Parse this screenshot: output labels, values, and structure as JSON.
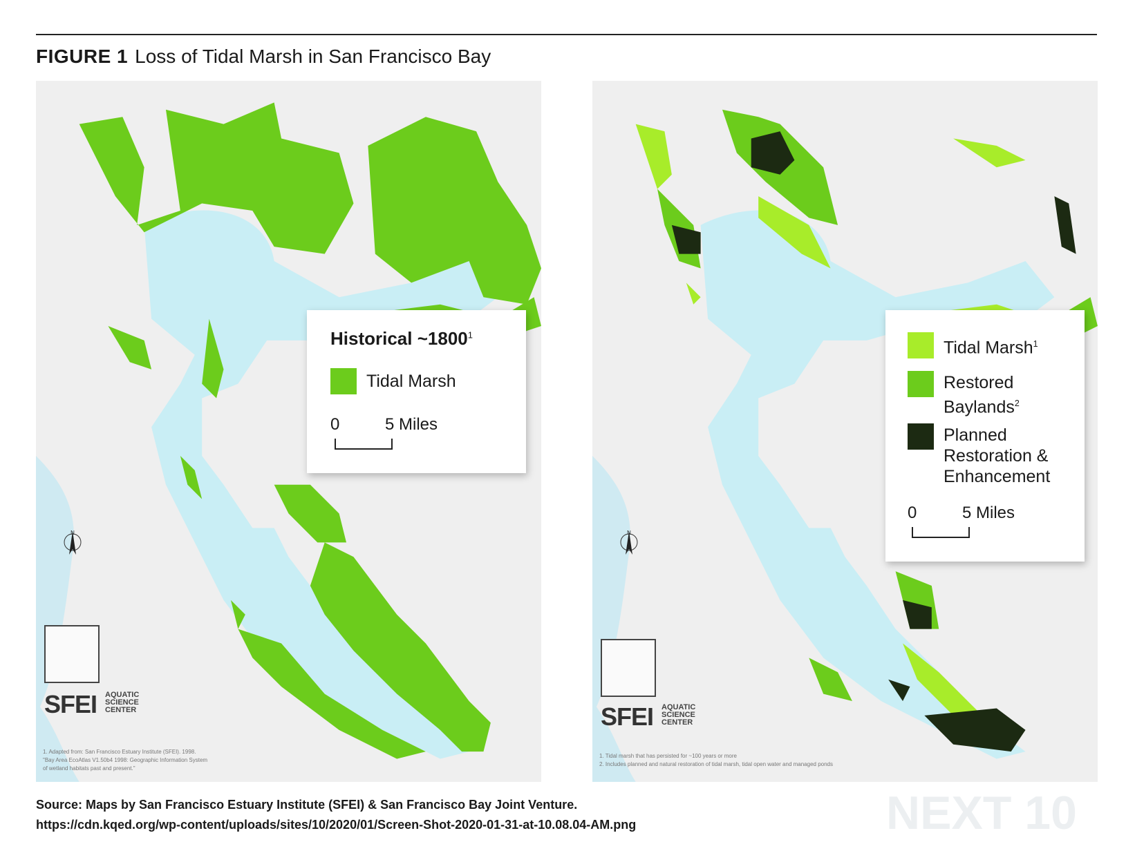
{
  "header": {
    "label": "FIGURE 1",
    "title": "Loss of Tidal Marsh in San Francisco Bay"
  },
  "historical_map": {
    "legend_title": "Historical ~1800",
    "legend_title_note": "1",
    "legend_items": [
      "Tidal Marsh"
    ],
    "scale_start": "0",
    "scale_end": "5 Miles",
    "north": "N",
    "logo": {
      "name": "SFEI",
      "subtitle": [
        "AQUATIC",
        "SCIENCE",
        "CENTER"
      ]
    },
    "footnotes": [
      "1. Adapted from: San Francisco Estuary Institute (SFEI). 1998.",
      "\"Bay Area EcoAtlas V1.50b4 1998: Geographic Information System",
      "of wetland habitats past and present.\""
    ]
  },
  "current_map": {
    "legend_items": [
      {
        "label": "Tidal Marsh",
        "note": "1"
      },
      {
        "label": "Restored Baylands",
        "note": "2"
      },
      {
        "label": "Planned Restoration & Enhancement"
      }
    ],
    "scale_start": "0",
    "scale_end": "5 Miles",
    "north": "N",
    "logo": {
      "name": "SFEI",
      "subtitle": [
        "AQUATIC",
        "SCIENCE",
        "CENTER"
      ]
    },
    "footnotes": [
      "1. Tidal marsh that has persisted for ~100 years or more",
      "2. Includes planned and natural restoration of tidal marsh, tidal open water and managed ponds"
    ]
  },
  "source": {
    "line1": "Source:  Maps by San Francisco Estuary Institute (SFEI) & San Francisco Bay Joint Venture.",
    "url": "https://cdn.kqed.org/wp-content/uploads/sites/10/2020/01/Screen-Shot-2020-01-31-at-10.08.04-AM.png"
  },
  "watermark": "NEXT 10"
}
